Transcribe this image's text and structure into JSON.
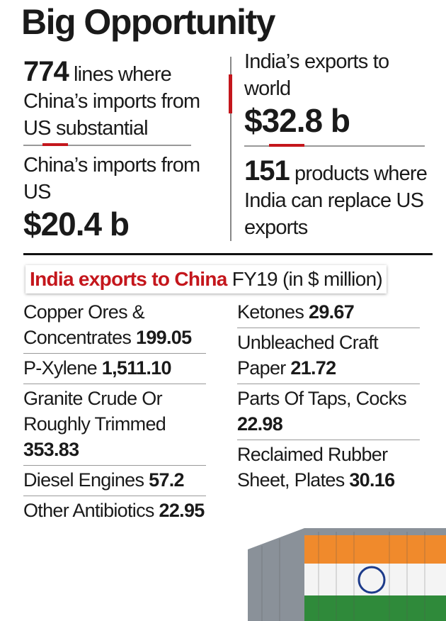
{
  "title": "Big Opportunity",
  "stats": {
    "left": [
      {
        "number": "774",
        "text": "lines where China’s imports from US substantial"
      },
      {
        "label": "China’s imports from US",
        "value": "$20.4 b"
      }
    ],
    "right": [
      {
        "label": "India’s exports to world",
        "value": "$32.8 b"
      },
      {
        "number": "151",
        "text": "products where India can replace US exports"
      }
    ]
  },
  "section": {
    "title": "India exports to China",
    "subtitle": "FY19 (in $ million)"
  },
  "items": {
    "left": [
      {
        "name": "Copper Ores & Concentrates",
        "value": "199.05"
      },
      {
        "name": "P-Xylene",
        "value": "1,511.10"
      },
      {
        "name": "Granite Crude Or Roughly Trimmed",
        "value": "353.83"
      },
      {
        "name": "Diesel Engines",
        "value": "57.2"
      },
      {
        "name": "Other Antibiotics",
        "value": "22.95"
      }
    ],
    "right": [
      {
        "name": "Ketones",
        "value": "29.67"
      },
      {
        "name": "Unbleached Craft Paper",
        "value": "21.72"
      },
      {
        "name": "Parts Of Taps, Cocks",
        "value": "22.98"
      },
      {
        "name": "Reclaimed Rubber Sheet, Plates",
        "value": "30.16"
      }
    ]
  }
}
